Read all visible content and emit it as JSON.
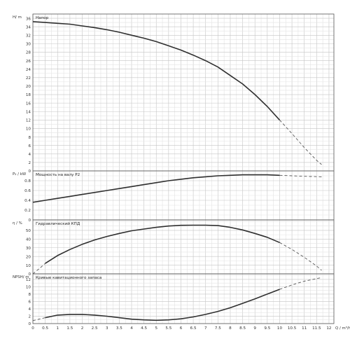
{
  "chart_data": [
    {
      "type": "line",
      "panel_title": "Напор",
      "ylabel": "H/ m",
      "yticks": [
        0,
        2,
        4,
        6,
        8,
        10,
        12,
        14,
        16,
        18,
        20,
        22,
        24,
        26,
        28,
        30,
        32,
        34,
        36
      ],
      "ylim": [
        0,
        37
      ],
      "grid": true,
      "series": [
        {
          "style": "solid",
          "x": [
            0,
            0.5,
            1,
            1.5,
            2,
            2.5,
            3,
            3.5,
            4,
            4.5,
            5,
            5.5,
            6,
            6.5,
            7,
            7.5,
            8,
            8.5,
            9,
            9.5,
            10
          ],
          "y": [
            35.2,
            35,
            34.8,
            34.6,
            34.2,
            33.8,
            33.3,
            32.7,
            32,
            31.3,
            30.5,
            29.5,
            28.5,
            27.3,
            26,
            24.5,
            22.5,
            20.5,
            18,
            15.2,
            12
          ]
        },
        {
          "style": "dashed",
          "x": [
            10,
            10.5,
            11,
            11.5,
            11.7
          ],
          "y": [
            12,
            8.8,
            5.5,
            2.5,
            1.5
          ]
        }
      ]
    },
    {
      "type": "line",
      "panel_title": "Мощность на валу P2",
      "ylabel": "P₂ / kW",
      "yticks": [
        0,
        0.2,
        0.4,
        0.6,
        0.8
      ],
      "ylim": [
        0,
        1.0
      ],
      "grid": true,
      "series": [
        {
          "style": "solid",
          "x": [
            0,
            0.5,
            1,
            1.5,
            2,
            2.5,
            3,
            3.5,
            4,
            4.5,
            5,
            5.5,
            6,
            6.5,
            7,
            7.5,
            8,
            8.5,
            9,
            9.5,
            10
          ],
          "y": [
            0.36,
            0.4,
            0.44,
            0.48,
            0.52,
            0.56,
            0.6,
            0.64,
            0.68,
            0.72,
            0.76,
            0.8,
            0.83,
            0.86,
            0.88,
            0.9,
            0.91,
            0.92,
            0.92,
            0.92,
            0.91
          ]
        },
        {
          "style": "dashed",
          "x": [
            10,
            10.5,
            11,
            11.7
          ],
          "y": [
            0.91,
            0.9,
            0.89,
            0.88
          ]
        }
      ]
    },
    {
      "type": "line",
      "panel_title": "Гидравлический КПД",
      "ylabel": "η / %",
      "yticks": [
        0,
        10,
        20,
        30,
        40,
        50
      ],
      "ylim": [
        0,
        62
      ],
      "grid": true,
      "series": [
        {
          "style": "dashed",
          "x": [
            0,
            0.3,
            0.5
          ],
          "y": [
            0,
            7,
            12
          ]
        },
        {
          "style": "solid",
          "x": [
            0.5,
            1,
            1.5,
            2,
            2.5,
            3,
            3.5,
            4,
            4.5,
            5,
            5.5,
            6,
            6.5,
            7,
            7.5,
            8,
            8.5,
            9,
            9.5,
            10
          ],
          "y": [
            12,
            21,
            28,
            34,
            39,
            43,
            46.5,
            49.5,
            51.5,
            53.5,
            55,
            55.8,
            56,
            56,
            55.5,
            53.5,
            50.5,
            46.5,
            42,
            36
          ]
        },
        {
          "style": "dashed",
          "x": [
            10,
            10.5,
            11,
            11.5,
            11.7
          ],
          "y": [
            36,
            28,
            19,
            9,
            4
          ]
        }
      ]
    },
    {
      "type": "line",
      "panel_title": "Кривые кавитационного запаса",
      "ylabel": "NPSH/ m",
      "xlabel": "Q / m³/h",
      "xticks": [
        0,
        0.5,
        1,
        1.5,
        2,
        2.5,
        3,
        3.5,
        4,
        4.5,
        5,
        5.5,
        6,
        6.5,
        7,
        7.5,
        8,
        8.5,
        9,
        9.5,
        10,
        10.5,
        11,
        11.5,
        12
      ],
      "yticks": [
        0,
        2,
        4,
        6,
        8,
        10,
        12
      ],
      "xlim": [
        0,
        12.2
      ],
      "ylim": [
        0,
        13.5
      ],
      "grid": true,
      "series": [
        {
          "style": "dashed",
          "x": [
            0,
            0.5
          ],
          "y": [
            0.8,
            1.6
          ]
        },
        {
          "style": "solid",
          "x": [
            0.5,
            1,
            1.5,
            2,
            2.5,
            3,
            3.5,
            4,
            4.5,
            5,
            5.5,
            6,
            6.5,
            7,
            7.5,
            8,
            8.5,
            9,
            9.5,
            10
          ],
          "y": [
            1.6,
            2.3,
            2.5,
            2.5,
            2.3,
            2.0,
            1.6,
            1.2,
            1.0,
            0.9,
            1.0,
            1.3,
            1.8,
            2.5,
            3.3,
            4.3,
            5.5,
            6.7,
            8.0,
            9.3
          ]
        },
        {
          "style": "dashed",
          "x": [
            10,
            10.5,
            11,
            11.7
          ],
          "y": [
            9.3,
            10.5,
            11.5,
            12.5
          ]
        }
      ]
    }
  ]
}
